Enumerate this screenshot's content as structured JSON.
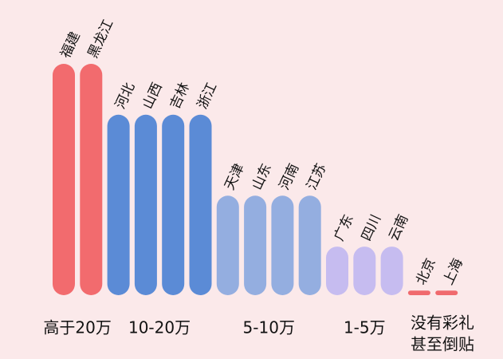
{
  "chart_data": {
    "type": "bar",
    "ylim": [
      0,
      100
    ],
    "groups": [
      {
        "labels": [
          "高于20万"
        ],
        "color": "#f26b6e",
        "categories": [
          "福建",
          "黑龙江"
        ],
        "values": [
          100,
          100
        ]
      },
      {
        "labels": [
          "10-20万"
        ],
        "color": "#5b8bd6",
        "categories": [
          "河北",
          "山西",
          "吉林",
          "浙江"
        ],
        "values": [
          78,
          78,
          78,
          78
        ]
      },
      {
        "labels": [
          "5-10万"
        ],
        "color": "#94aee0",
        "categories": [
          "天津",
          "山东",
          "河南",
          "江苏"
        ],
        "values": [
          43,
          43,
          43,
          43
        ]
      },
      {
        "labels": [
          "1-5万"
        ],
        "color": "#c6bcf0",
        "categories": [
          "广东",
          "四川",
          "云南"
        ],
        "values": [
          21,
          21,
          21
        ]
      },
      {
        "labels": [
          "没有彩礼",
          "甚至倒贴"
        ],
        "color": "#f06a6e",
        "categories": [
          "北京",
          "上海"
        ],
        "values": [
          2,
          2
        ]
      }
    ]
  }
}
